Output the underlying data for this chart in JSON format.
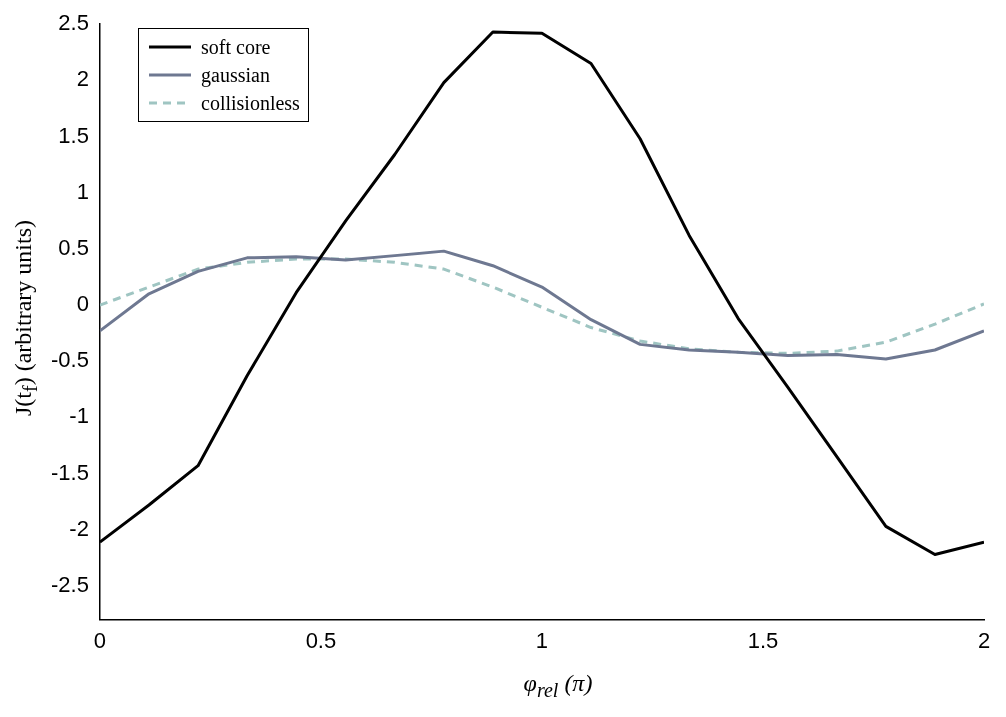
{
  "chart_data": {
    "type": "line",
    "xlabel": "φ$_{rel}$ (π)",
    "ylabel": "J(t$_{f}$) (arbitrary units)",
    "x": [
      0,
      0.111,
      0.222,
      0.333,
      0.444,
      0.556,
      0.667,
      0.778,
      0.889,
      1,
      1.111,
      1.222,
      1.333,
      1.444,
      1.556,
      1.667,
      1.778,
      1.889,
      2
    ],
    "series": [
      {
        "name": "soft core",
        "color": "#000000",
        "line_style": "solid",
        "values": [
          -2.11,
          -1.78,
          -1.43,
          -0.63,
          0.11,
          0.75,
          1.34,
          1.98,
          2.43,
          2.42,
          2.15,
          1.48,
          0.62,
          -0.12,
          -0.73,
          -1.35,
          -1.97,
          -2.22,
          -2.11
        ]
      },
      {
        "name": "gaussian",
        "color": "#6e7891",
        "line_style": "solid",
        "values": [
          -0.23,
          0.1,
          0.3,
          0.42,
          0.43,
          0.4,
          0.44,
          0.48,
          0.35,
          0.16,
          -0.13,
          -0.35,
          -0.4,
          -0.42,
          -0.45,
          -0.44,
          -0.48,
          -0.4,
          -0.23
        ]
      },
      {
        "name": "collisionless",
        "color": "#9fc5c2",
        "line_style": "dashed",
        "values": [
          0,
          0.16,
          0.32,
          0.38,
          0.41,
          0.41,
          0.38,
          0.32,
          0.16,
          -0.02,
          -0.2,
          -0.32,
          -0.39,
          -0.42,
          -0.43,
          -0.41,
          -0.33,
          -0.17,
          0.01
        ]
      }
    ],
    "xlim": [
      0,
      2
    ],
    "xticks": [
      0,
      0.5,
      1,
      1.5,
      2
    ],
    "ylim": [
      -2.8,
      2.5
    ],
    "yticks": [
      -2.5,
      -2,
      -1.5,
      -1,
      -0.5,
      0,
      0.5,
      1,
      1.5,
      2,
      2.5
    ],
    "grid": false,
    "legend": "top left",
    "marker": "none"
  }
}
